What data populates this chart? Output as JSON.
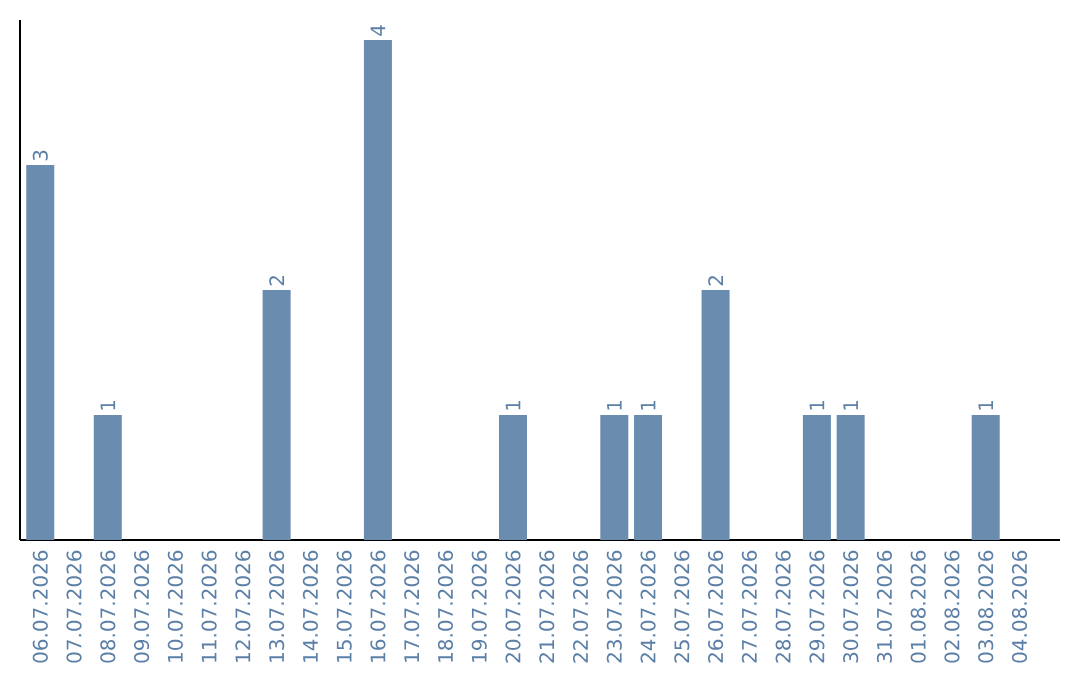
{
  "chart_data": {
    "type": "bar",
    "categories": [
      "06.07.2026",
      "07.07.2026",
      "08.07.2026",
      "09.07.2026",
      "10.07.2026",
      "11.07.2026",
      "12.07.2026",
      "13.07.2026",
      "14.07.2026",
      "15.07.2026",
      "16.07.2026",
      "17.07.2026",
      "18.07.2026",
      "19.07.2026",
      "20.07.2026",
      "21.07.2026",
      "22.07.2026",
      "23.07.2026",
      "24.07.2026",
      "25.07.2026",
      "26.07.2026",
      "27.07.2026",
      "28.07.2026",
      "29.07.2026",
      "30.07.2026",
      "31.07.2026",
      "01.08.2026",
      "02.08.2026",
      "03.08.2026",
      "04.08.2026"
    ],
    "values": [
      3,
      0,
      1,
      0,
      0,
      0,
      0,
      2,
      0,
      0,
      4,
      0,
      0,
      0,
      1,
      0,
      0,
      1,
      1,
      0,
      2,
      0,
      0,
      1,
      1,
      0,
      0,
      0,
      1,
      0
    ],
    "value_labels": [
      "3",
      null,
      "1",
      null,
      null,
      null,
      null,
      "2",
      null,
      null,
      "4",
      null,
      null,
      null,
      "1",
      null,
      null,
      "1",
      "1",
      null,
      "2",
      null,
      null,
      "1",
      "1",
      null,
      null,
      null,
      "1",
      null
    ],
    "color": "#6a8caf",
    "ylim": [
      0,
      4.16
    ],
    "tick_labels": "x"
  }
}
